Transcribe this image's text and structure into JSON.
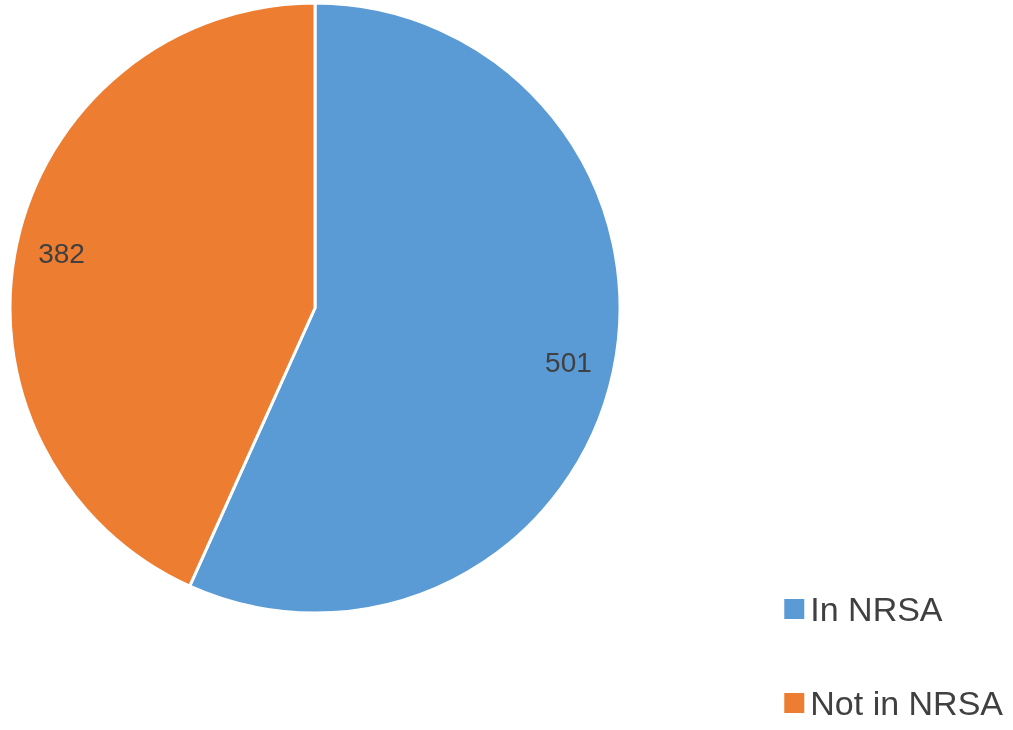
{
  "chart_data": {
    "type": "pie",
    "categories": [
      "In NRSA",
      "Not in NRSA"
    ],
    "values": [
      501,
      382
    ],
    "colors": [
      "#5b9bd5",
      "#ed7d31"
    ],
    "data_labels": true,
    "legend": "bottom right"
  }
}
